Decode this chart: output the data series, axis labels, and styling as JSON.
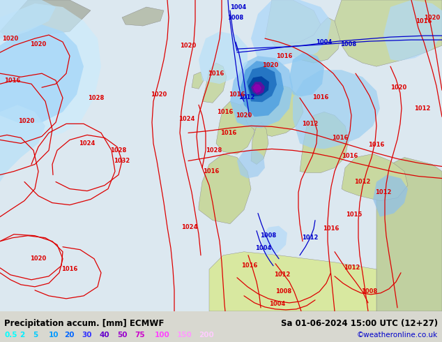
{
  "title_left": "Precipitation accum. [mm] ECMWF",
  "title_right": "Sa 01-06-2024 15:00 UTC (12+27)",
  "watermark": "©weatheronline.co.uk",
  "legend_values": [
    "0.5",
    "2",
    "5",
    "10",
    "20",
    "30",
    "40",
    "50",
    "75",
    "100",
    "150",
    "200"
  ],
  "legend_colors": [
    "#00ffff",
    "#00eeff",
    "#00ccff",
    "#0099ff",
    "#0066ff",
    "#3333ff",
    "#6600cc",
    "#9900cc",
    "#cc00cc",
    "#ff44ff",
    "#ff99ff",
    "#ffccff"
  ],
  "bg_color": "#d8d8d0",
  "map_bg_land": "#c8ddb0",
  "map_bg_ocean": "#ddeef8",
  "map_bg_plain": "#e8e8e0",
  "bottom_bar_color": "#d8d8d0",
  "title_color": "#000000",
  "title_fontsize": 8.5,
  "legend_fontsize": 7.5,
  "watermark_color": "#0000cc",
  "watermark_fontsize": 7.5,
  "fig_width": 6.34,
  "fig_height": 4.9,
  "dpi": 100,
  "isobar_red": "#dd0000",
  "isobar_blue": "#0000cc",
  "precip_light": "#b8e8ff",
  "precip_med": "#70c0f0",
  "precip_heavy": "#2090d8",
  "precip_vheavy": "#0050b0",
  "precip_purple": "#8020b0",
  "precip_magenta": "#cc00cc"
}
